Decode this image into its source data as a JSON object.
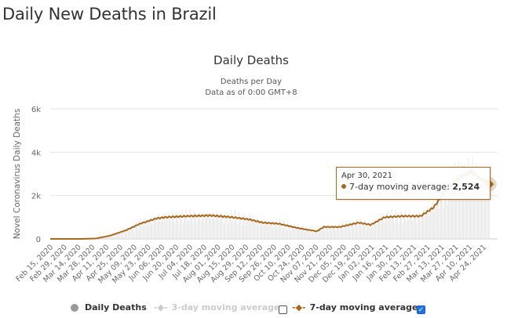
{
  "page_title": "Daily New Deaths in Brazil",
  "colors": {
    "avg7": "#a8691f",
    "bars": "#e6e6e6",
    "grid": "#e6e6e6",
    "checkbox": "#1a73e8",
    "disabled": "#cccccc"
  },
  "tooltip": {
    "date": "Apr 30, 2021",
    "series": "7-day moving average: ",
    "value": "2,524"
  },
  "legend": {
    "daily": "Daily Deaths",
    "avg3": "3-day moving average",
    "avg7": "7-day moving average",
    "avg3_checked": false,
    "avg7_checked": true
  },
  "chart_data": {
    "type": "line",
    "title": "Daily Deaths",
    "subtitle": [
      "Deaths per Day",
      "Data as of 0:00 GMT+8"
    ],
    "xlabel": "",
    "ylabel": "Novel Coronavirus Daily Deaths",
    "ylim": [
      0,
      6000
    ],
    "yticks": [
      0,
      2000,
      4000,
      6000
    ],
    "ytick_labels": [
      "0",
      "2k",
      "4k",
      "6k"
    ],
    "x_range": [
      "Feb 15, 2020",
      "Apr 30, 2021"
    ],
    "xtick_labels": [
      "Feb 15, 2020",
      "Feb 29, 2020",
      "Mar 14, 2020",
      "Mar 28, 2020",
      "Apr 11, 2020",
      "Apr 25, 2020",
      "May 09, 2020",
      "May 23, 2020",
      "Jun 06, 2020",
      "Jun 20, 2020",
      "Jul 04, 2020",
      "Jul 18, 2020",
      "Aug 01, 2020",
      "Aug 15, 2020",
      "Aug 29, 2020",
      "Sep 12, 2020",
      "Sep 26, 2020",
      "Oct 10, 2020",
      "Oct 24, 2020",
      "Nov 07, 2020",
      "Nov 21, 2020",
      "Dec 05, 2020",
      "Dec 19, 2020",
      "Jan 02, 2021",
      "Jan 16, 2021",
      "Jan 30, 2021",
      "Feb 13, 2021",
      "Feb 27, 2021",
      "Mar 13, 2021",
      "Mar 27, 2021",
      "Apr 10, 2021",
      "Apr 24, 2021"
    ],
    "grid": true,
    "legend_position": "bottom",
    "series": [
      {
        "name": "7-day moving average",
        "day_offset_from_feb15_2020": [
          0,
          31,
          46,
          60,
          76,
          90,
          107,
          116,
          137,
          161,
          182,
          199,
          213,
          229,
          248,
          267,
          274,
          290,
          309,
          321,
          335,
          352,
          371,
          384,
          399,
          411,
          422,
          430,
          440
        ],
        "values": [
          0,
          0,
          20,
          150,
          400,
          700,
          950,
          1000,
          1050,
          1080,
          1000,
          900,
          750,
          700,
          500,
          350,
          550,
          550,
          750,
          650,
          1000,
          1050,
          1050,
          1450,
          2400,
          2850,
          3100,
          2800,
          2524
        ]
      }
    ],
    "highlight": {
      "date": "Apr 30, 2021",
      "value": 2524
    }
  }
}
